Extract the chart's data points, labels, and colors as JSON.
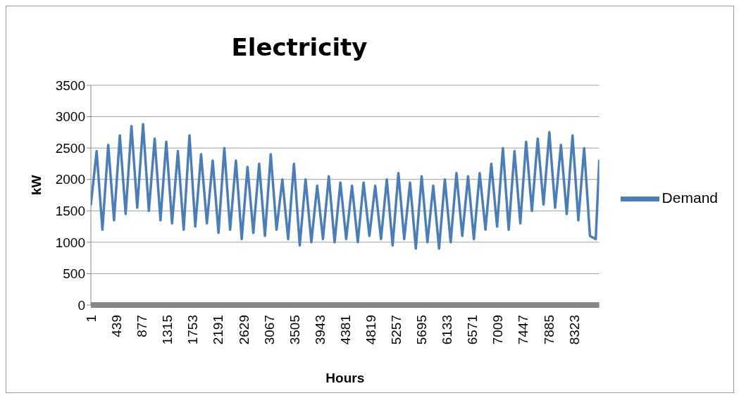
{
  "chart_data": {
    "type": "line",
    "title": "Electricity",
    "xlabel": "Hours",
    "ylabel": "kW",
    "x": [
      1,
      100,
      200,
      300,
      400,
      500,
      600,
      700,
      800,
      900,
      1000,
      1100,
      1200,
      1300,
      1400,
      1500,
      1600,
      1700,
      1800,
      1900,
      2000,
      2100,
      2200,
      2300,
      2400,
      2500,
      2600,
      2700,
      2800,
      2900,
      3000,
      3100,
      3200,
      3300,
      3400,
      3500,
      3600,
      3700,
      3800,
      3900,
      4000,
      4100,
      4200,
      4300,
      4400,
      4500,
      4600,
      4700,
      4800,
      4900,
      5000,
      5100,
      5200,
      5300,
      5400,
      5500,
      5600,
      5700,
      5800,
      5900,
      6000,
      6100,
      6200,
      6300,
      6400,
      6500,
      6600,
      6700,
      6800,
      6900,
      7000,
      7100,
      7200,
      7300,
      7400,
      7500,
      7600,
      7700,
      7800,
      7900,
      8000,
      8100,
      8200,
      8300,
      8400,
      8500,
      8600,
      8700,
      8760
    ],
    "series": [
      {
        "name": "Demand",
        "color": "#4a7ebb",
        "values": [
          1600,
          2450,
          1200,
          2550,
          1350,
          2700,
          1450,
          2850,
          1550,
          2880,
          1500,
          2650,
          1350,
          2600,
          1300,
          2450,
          1200,
          2700,
          1250,
          2400,
          1300,
          2300,
          1150,
          2500,
          1200,
          2300,
          1050,
          2200,
          1150,
          2250,
          1100,
          2400,
          1200,
          2000,
          1050,
          2250,
          950,
          2000,
          1000,
          1900,
          1050,
          2050,
          1000,
          1950,
          1050,
          1900,
          1000,
          1950,
          1100,
          1900,
          1050,
          2000,
          950,
          2100,
          1050,
          1950,
          900,
          2050,
          1000,
          1900,
          900,
          2000,
          1000,
          2100,
          1100,
          2050,
          1050,
          2100,
          1200,
          2250,
          1250,
          2500,
          1200,
          2450,
          1300,
          2600,
          1500,
          2650,
          1600,
          2750,
          1550,
          2550,
          1450,
          2700,
          1350,
          2500,
          1100,
          1050,
          2300
        ]
      }
    ],
    "xlim": [
      1,
      8760
    ],
    "xticks": [
      1,
      439,
      877,
      1315,
      1753,
      2191,
      2629,
      3067,
      3505,
      3943,
      4381,
      4819,
      5257,
      5695,
      6133,
      6571,
      7009,
      7447,
      7885,
      8323
    ],
    "ylim": [
      0,
      3500
    ],
    "yticks": [
      0,
      500,
      1000,
      1500,
      2000,
      2500,
      3000,
      3500
    ],
    "grid": "y",
    "legend": "right",
    "marker": "none",
    "line_style": "solid"
  }
}
